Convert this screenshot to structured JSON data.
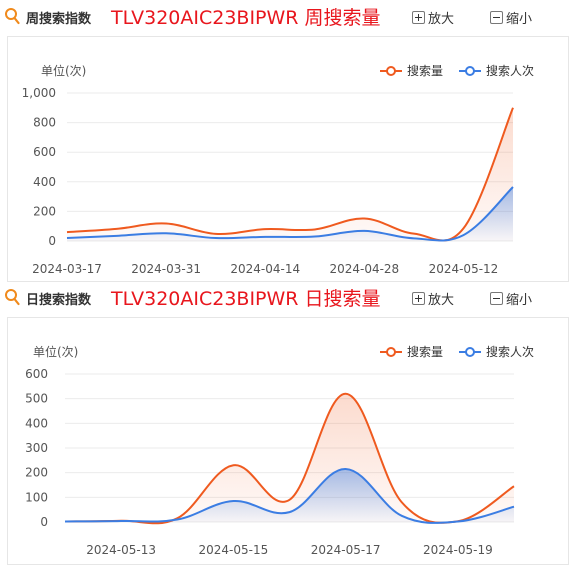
{
  "weekly": {
    "label": "周搜索指数",
    "title": "TLV320AIC23BIPWR 周搜索量",
    "zoom_in": "放大",
    "zoom_out": "缩小"
  },
  "daily": {
    "label": "日搜索指数",
    "title": "TLV320AIC23BIPWR 日搜索量",
    "zoom_in": "放大",
    "zoom_out": "缩小"
  },
  "colors": {
    "search_volume": "#ef5a1f",
    "searchers": "#3b7de3",
    "title": "#e8161d"
  },
  "chart_data": [
    {
      "type": "area",
      "unit_label": "单位(次)",
      "ylim": [
        0,
        1000
      ],
      "yticks": [
        "0",
        "200",
        "400",
        "600",
        "800",
        "1,000"
      ],
      "ytick_values": [
        0,
        200,
        400,
        600,
        800,
        1000
      ],
      "x": [
        "2024-03-17",
        "2024-03-24",
        "2024-03-31",
        "2024-04-07",
        "2024-04-14",
        "2024-04-21",
        "2024-04-28",
        "2024-05-05",
        "2024-05-12",
        "2024-05-19"
      ],
      "xtick_labels": [
        "2024-03-17",
        "2024-03-31",
        "2024-04-14",
        "2024-04-28",
        "2024-05-12"
      ],
      "series": [
        {
          "name": "搜索量",
          "values": [
            60,
            82,
            118,
            48,
            80,
            78,
            152,
            50,
            85,
            900
          ]
        },
        {
          "name": "搜索人次",
          "values": [
            20,
            35,
            52,
            20,
            28,
            30,
            68,
            18,
            40,
            365
          ]
        }
      ],
      "legend": "top-right",
      "grid": true
    },
    {
      "type": "area",
      "unit_label": "单位(次)",
      "ylim": [
        0,
        600
      ],
      "yticks": [
        "0",
        "100",
        "200",
        "300",
        "400",
        "500",
        "600"
      ],
      "ytick_values": [
        0,
        100,
        200,
        300,
        400,
        500,
        600
      ],
      "x": [
        "2024-05-12",
        "2024-05-13",
        "2024-05-14",
        "2024-05-15",
        "2024-05-16",
        "2024-05-17",
        "2024-05-18",
        "2024-05-19",
        "2024-05-20"
      ],
      "xtick_labels": [
        "2024-05-13",
        "2024-05-15",
        "2024-05-17",
        "2024-05-19"
      ],
      "series": [
        {
          "name": "搜索量",
          "values": [
            2,
            5,
            15,
            230,
            90,
            520,
            80,
            3,
            145
          ]
        },
        {
          "name": "搜索人次",
          "values": [
            2,
            4,
            10,
            85,
            40,
            215,
            25,
            2,
            62
          ]
        }
      ],
      "legend": "top-right",
      "grid": true
    }
  ]
}
